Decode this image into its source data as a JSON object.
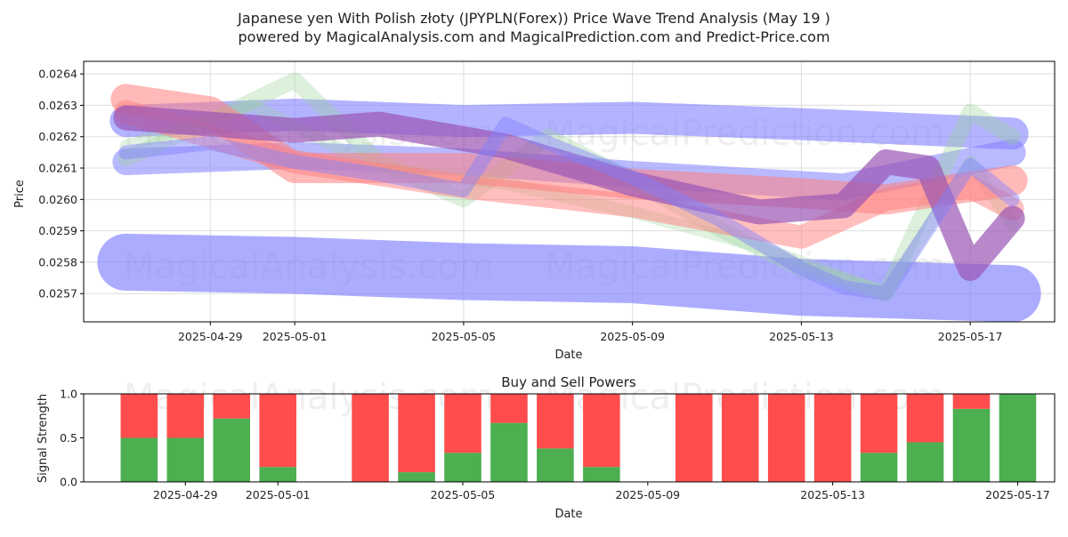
{
  "title_line1": "Japanese yen With Polish złoty (JPYPLN(Forex)) Price Wave Trend Analysis (May 19 )",
  "title_line2": "powered by MagicalAnalysis.com and MagicalPrediction.com and Predict-Price.com",
  "watermarks": [
    "MagicalAnalysis.com",
    "MagicalPrediction.com"
  ],
  "colors": {
    "blue": "#8080ff",
    "green": "#9bd39b",
    "red": "#ff7f7f",
    "purple": "#9a55b5",
    "buy": "#4caf50",
    "sell": "#ff4d4d"
  },
  "chart_data": [
    {
      "type": "line",
      "title": "",
      "xlabel": "Date",
      "ylabel": "Price",
      "x_ticks": [
        "2025-04-29",
        "2025-05-01",
        "2025-05-05",
        "2025-05-09",
        "2025-05-13",
        "2025-05-17"
      ],
      "y_ticks": [
        "0.0257",
        "0.0258",
        "0.0259",
        "0.0260",
        "0.0261",
        "0.0262",
        "0.0263",
        "0.0264"
      ],
      "ylim": [
        0.02561,
        0.02644
      ],
      "xlim": [
        "2025-04-26",
        "2025-05-19"
      ],
      "grid": true,
      "series": [
        {
          "color": "blue",
          "points": [
            [
              "2025-04-27",
              0.02625
            ],
            [
              "2025-05-01",
              0.02627
            ],
            [
              "2025-05-05",
              0.02625
            ],
            [
              "2025-05-09",
              0.02626
            ],
            [
              "2025-05-13",
              0.02624
            ],
            [
              "2025-05-18",
              0.02621
            ]
          ]
        },
        {
          "color": "blue",
          "points": [
            [
              "2025-04-27",
              0.02612
            ],
            [
              "2025-05-01",
              0.02614
            ],
            [
              "2025-05-05",
              0.02612
            ],
            [
              "2025-05-09",
              0.02608
            ],
            [
              "2025-05-14",
              0.02604
            ],
            [
              "2025-05-18",
              0.02615
            ]
          ]
        },
        {
          "color": "blue",
          "points": [
            [
              "2025-04-27",
              0.0258
            ],
            [
              "2025-05-01",
              0.02579
            ],
            [
              "2025-05-05",
              0.02577
            ],
            [
              "2025-05-09",
              0.02576
            ],
            [
              "2025-05-13",
              0.02572
            ],
            [
              "2025-05-18",
              0.0257
            ]
          ]
        },
        {
          "color": "green",
          "points": [
            [
              "2025-04-27",
              0.02613
            ],
            [
              "2025-04-29",
              0.02625
            ],
            [
              "2025-05-01",
              0.02638
            ],
            [
              "2025-05-03",
              0.02612
            ],
            [
              "2025-05-05",
              0.026
            ],
            [
              "2025-05-07",
              0.0262
            ],
            [
              "2025-05-09",
              0.02606
            ],
            [
              "2025-05-11",
              0.02591
            ],
            [
              "2025-05-13",
              0.02578
            ],
            [
              "2025-05-15",
              0.0257
            ],
            [
              "2025-05-17",
              0.02628
            ],
            [
              "2025-05-18",
              0.0262
            ]
          ]
        },
        {
          "color": "green",
          "points": [
            [
              "2025-04-27",
              0.02617
            ],
            [
              "2025-04-30",
              0.0263
            ],
            [
              "2025-05-03",
              0.0261
            ],
            [
              "2025-05-06",
              0.02605
            ],
            [
              "2025-05-09",
              0.02596
            ],
            [
              "2025-05-12",
              0.02585
            ],
            [
              "2025-05-15",
              0.0257
            ],
            [
              "2025-05-17",
              0.02612
            ],
            [
              "2025-05-18",
              0.02592
            ]
          ]
        },
        {
          "color": "red",
          "points": [
            [
              "2025-04-27",
              0.02632
            ],
            [
              "2025-04-29",
              0.02628
            ],
            [
              "2025-05-01",
              0.0261
            ],
            [
              "2025-05-05",
              0.0261
            ],
            [
              "2025-05-09",
              0.02605
            ],
            [
              "2025-05-13",
              0.02602
            ],
            [
              "2025-05-15",
              0.026
            ],
            [
              "2025-05-18",
              0.02606
            ]
          ]
        },
        {
          "color": "red",
          "points": [
            [
              "2025-04-27",
              0.02628
            ],
            [
              "2025-05-01",
              0.02612
            ],
            [
              "2025-05-05",
              0.02604
            ],
            [
              "2025-05-09",
              0.02598
            ],
            [
              "2025-05-13",
              0.02588
            ],
            [
              "2025-05-15",
              0.026
            ],
            [
              "2025-05-17",
              0.02604
            ],
            [
              "2025-05-18",
              0.02597
            ]
          ]
        },
        {
          "color": "purple",
          "points": [
            [
              "2025-04-27",
              0.02626
            ],
            [
              "2025-05-01",
              0.02622
            ],
            [
              "2025-05-03",
              0.02624
            ],
            [
              "2025-05-06",
              0.02617
            ],
            [
              "2025-05-09",
              0.02605
            ],
            [
              "2025-05-12",
              0.02596
            ],
            [
              "2025-05-14",
              0.02598
            ],
            [
              "2025-05-15",
              0.02612
            ],
            [
              "2025-05-16",
              0.0261
            ],
            [
              "2025-05-17",
              0.02578
            ],
            [
              "2025-05-18",
              0.02594
            ]
          ]
        },
        {
          "color": "blue",
          "points": [
            [
              "2025-04-27",
              0.02615
            ],
            [
              "2025-04-29",
              0.02618
            ],
            [
              "2025-05-01",
              0.02612
            ],
            [
              "2025-05-03",
              0.02608
            ],
            [
              "2025-05-05",
              0.02603
            ],
            [
              "2025-05-06",
              0.02624
            ],
            [
              "2025-05-07",
              0.02618
            ],
            [
              "2025-05-09",
              0.02607
            ],
            [
              "2025-05-11",
              0.02594
            ],
            [
              "2025-05-13",
              0.02578
            ],
            [
              "2025-05-14",
              0.02572
            ],
            [
              "2025-05-15",
              0.0257
            ],
            [
              "2025-05-17",
              0.02611
            ],
            [
              "2025-05-18",
              0.026
            ]
          ]
        }
      ]
    },
    {
      "type": "bar",
      "title": "Buy and Sell Powers",
      "xlabel": "Date",
      "ylabel": "Signal Strength",
      "x_ticks": [
        "2025-04-29",
        "2025-05-01",
        "2025-05-05",
        "2025-05-09",
        "2025-05-13",
        "2025-05-17"
      ],
      "y_ticks": [
        "0.0",
        "0.5",
        "1.0"
      ],
      "ylim": [
        0,
        1
      ],
      "series_names": [
        "buy",
        "sell"
      ],
      "bars": [
        {
          "date": "2025-04-28",
          "buy": 0.5
        },
        {
          "date": "2025-04-29",
          "buy": 0.5
        },
        {
          "date": "2025-04-30",
          "buy": 0.72
        },
        {
          "date": "2025-05-01",
          "buy": 0.17
        },
        {
          "date": "2025-05-03",
          "buy": 0.0
        },
        {
          "date": "2025-05-04",
          "buy": 0.11
        },
        {
          "date": "2025-05-05",
          "buy": 0.33
        },
        {
          "date": "2025-05-06",
          "buy": 0.67
        },
        {
          "date": "2025-05-07",
          "buy": 0.38
        },
        {
          "date": "2025-05-08",
          "buy": 0.17
        },
        {
          "date": "2025-05-10",
          "buy": 0.0
        },
        {
          "date": "2025-05-11",
          "buy": 0.0
        },
        {
          "date": "2025-05-12",
          "buy": 0.0
        },
        {
          "date": "2025-05-13",
          "buy": 0.0
        },
        {
          "date": "2025-05-14",
          "buy": 0.33
        },
        {
          "date": "2025-05-15",
          "buy": 0.45
        },
        {
          "date": "2025-05-16",
          "buy": 0.83
        },
        {
          "date": "2025-05-17",
          "buy": 1.0
        }
      ]
    }
  ]
}
